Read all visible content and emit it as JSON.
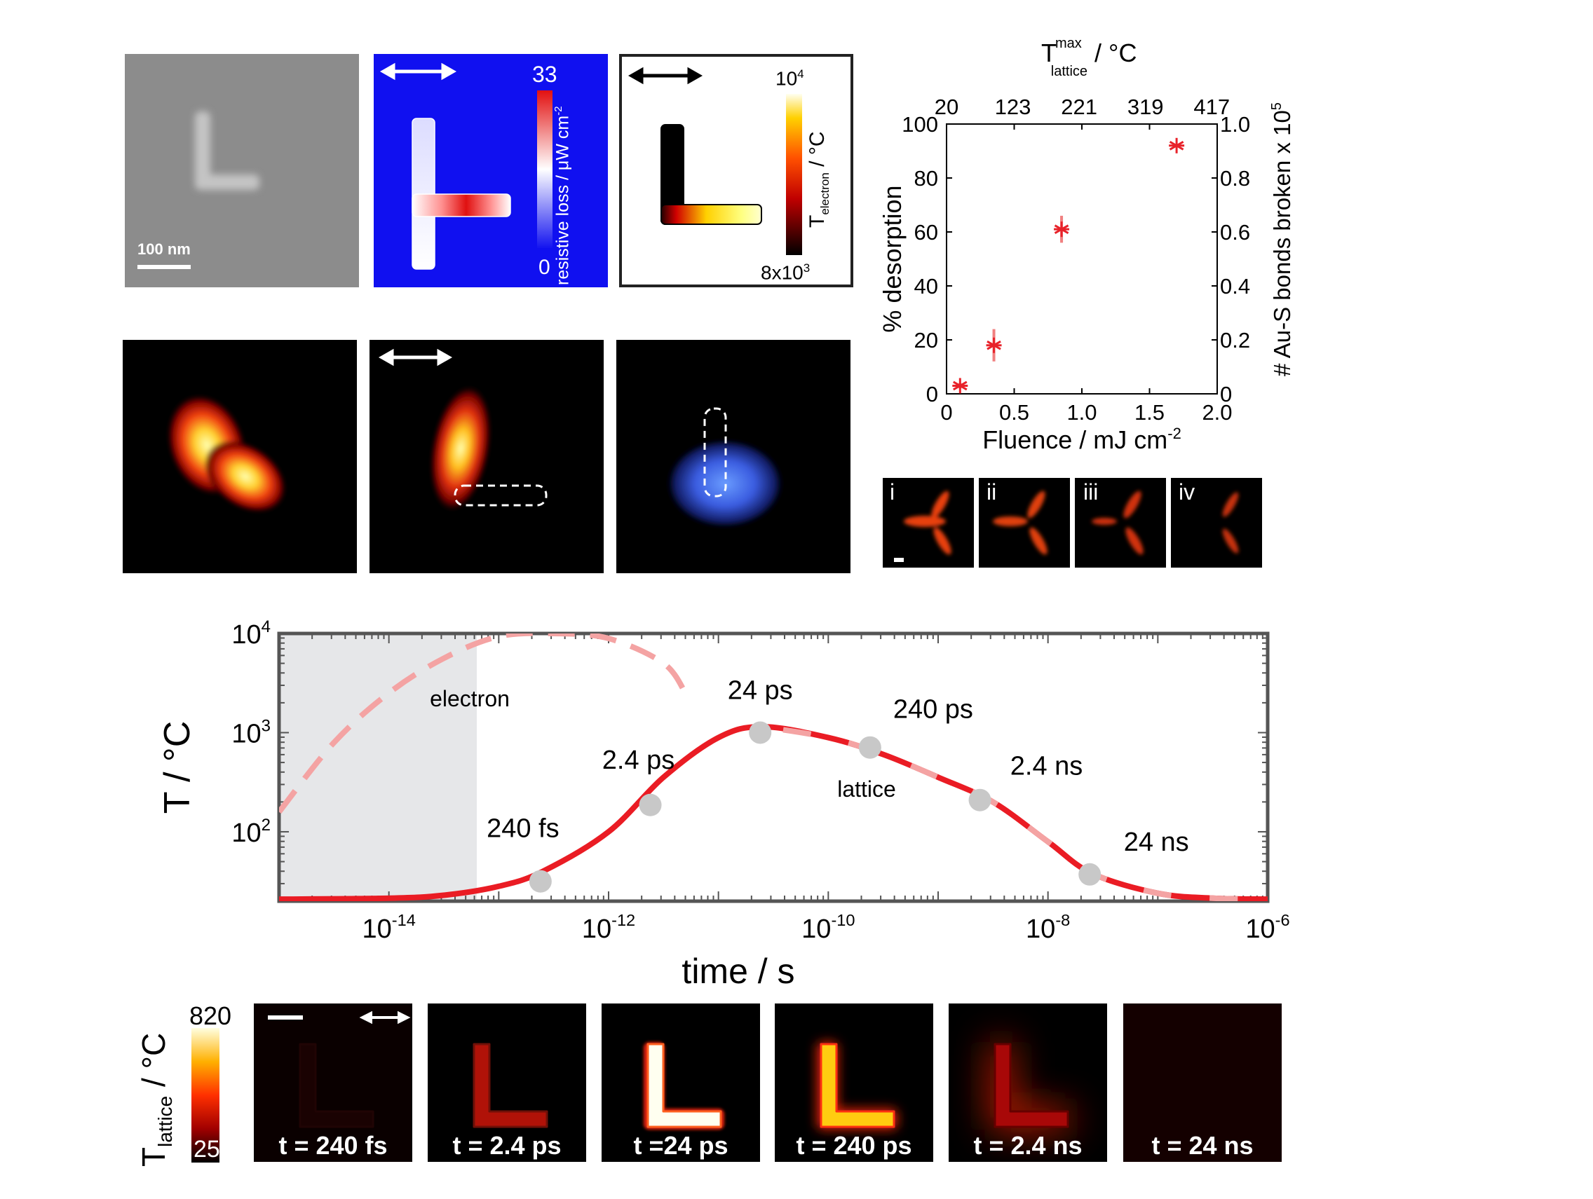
{
  "top_row": {
    "sem": {
      "scalebar_label": "100 nm"
    },
    "resistive": {
      "cbar_max": "33",
      "cbar_min": "0",
      "cbar_label": "resistive loss / μW cm",
      "cbar_label_sup": "-2",
      "bg_color": "#1010f0"
    },
    "telectron": {
      "cbar_max": "10",
      "cbar_max_sup": "4",
      "cbar_min": "8x10",
      "cbar_min_sup": "3",
      "cbar_label_main": "T",
      "cbar_label_sub": "electron",
      "cbar_label_unit": " / °C"
    }
  },
  "desorption_chart": {
    "top_title_T": "T",
    "top_title_sup": "max",
    "top_title_sub": "lattice",
    "top_title_unit": " / °C",
    "top_ticks": [
      "20",
      "123",
      "221",
      "319",
      "417"
    ],
    "left_ticks": [
      "0",
      "20",
      "40",
      "60",
      "80",
      "100"
    ],
    "right_ticks": [
      "0",
      "0.2",
      "0.4",
      "0.6",
      "0.8",
      "1.0"
    ],
    "bottom_ticks": [
      "0",
      "0.5",
      "1.0",
      "1.5",
      "2.0"
    ],
    "ylabel": "% desorption",
    "ylabel2": "# Au-S bonds broken x 10",
    "ylabel2_sup": "5",
    "xlabel": "Fluence / mJ cm",
    "xlabel_sup": "-2",
    "marker_color": "#e8222a"
  },
  "insets": [
    "i",
    "ii",
    "iii",
    "iv"
  ],
  "time_chart": {
    "ylabel": "T / °C",
    "xlabel": "time / s",
    "x_ticks": [
      {
        "base": "10",
        "exp": "-14",
        "v": -14
      },
      {
        "base": "10",
        "exp": "-12",
        "v": -12
      },
      {
        "base": "10",
        "exp": "-10",
        "v": -10
      },
      {
        "base": "10",
        "exp": "-8",
        "v": -8
      },
      {
        "base": "10",
        "exp": "-6",
        "v": -6
      }
    ],
    "y_ticks": [
      {
        "base": "10",
        "exp": "2",
        "v": 2
      },
      {
        "base": "10",
        "exp": "3",
        "v": 3
      },
      {
        "base": "10",
        "exp": "4",
        "v": 4
      }
    ],
    "electron_label": "electron",
    "lattice_label": "lattice",
    "points": [
      "240 fs",
      "2.4 ps",
      "24 ps",
      "240 ps",
      "2.4 ns",
      "24 ns"
    ]
  },
  "chart_data": [
    {
      "type": "scatter",
      "title": "",
      "xlabel": "Fluence / mJ cm-2",
      "ylabel": "% desorption",
      "y2label": "# Au-S bonds broken x 105",
      "top_axis_label": "Tmax lattice / °C",
      "xlim": [
        0,
        2.0
      ],
      "ylim": [
        0,
        100
      ],
      "y2lim": [
        0,
        1.0
      ],
      "series": [
        {
          "x": [
            0.1,
            0.35,
            0.85,
            1.7
          ],
          "y": [
            3,
            18,
            61,
            92
          ],
          "yerr": [
            1,
            6,
            5,
            0
          ]
        }
      ]
    },
    {
      "type": "line",
      "title": "",
      "xlabel": "time / s",
      "ylabel": "T / °C",
      "xscale": "log",
      "yscale": "log",
      "xlim": [
        1e-15,
        1e-06
      ],
      "ylim_log10": [
        1.3,
        4.0
      ],
      "series": [
        {
          "name": "electron",
          "x_log10": [
            -15,
            -14.5,
            -14,
            -13.5,
            -13,
            -12.5,
            -12,
            -11.5,
            -11.3
          ],
          "y_log10": [
            2.2,
            2.9,
            3.4,
            3.75,
            3.97,
            4.0,
            3.95,
            3.7,
            3.4
          ]
        },
        {
          "name": "lattice",
          "x_log10": [
            -15,
            -14,
            -13.5,
            -13,
            -12.6,
            -12,
            -11.5,
            -11,
            -10.6,
            -10,
            -9.5,
            -9,
            -8.5,
            -8,
            -7.6,
            -7,
            -6.5,
            -6
          ],
          "y_log10": [
            1.32,
            1.33,
            1.36,
            1.45,
            1.6,
            2.0,
            2.55,
            2.95,
            3.06,
            2.95,
            2.78,
            2.55,
            2.3,
            1.9,
            1.58,
            1.38,
            1.33,
            1.32
          ]
        }
      ],
      "markers": [
        {
          "label": "240 fs",
          "x_log10": -12.62,
          "y_log10": 1.5
        },
        {
          "label": "2.4 ps",
          "x_log10": -11.62,
          "y_log10": 2.27
        },
        {
          "label": "24 ps",
          "x_log10": -10.62,
          "y_log10": 3.0
        },
        {
          "label": "240 ps",
          "x_log10": -9.62,
          "y_log10": 2.85
        },
        {
          "label": "2.4 ns",
          "x_log10": -8.62,
          "y_log10": 2.32
        },
        {
          "label": "24 ns",
          "x_log10": -7.62,
          "y_log10": 1.57
        }
      ]
    }
  ],
  "bottom_row": {
    "cbar_max": "820",
    "cbar_min": "25",
    "cbar_label_main": "T",
    "cbar_label_sub": "lattice",
    "cbar_label_unit": " / °C",
    "captions": [
      "t = 240 fs",
      "t = 2.4 ps",
      "t =24 ps",
      "t = 240 ps",
      "t = 2.4 ns",
      "t = 24 ns"
    ]
  }
}
